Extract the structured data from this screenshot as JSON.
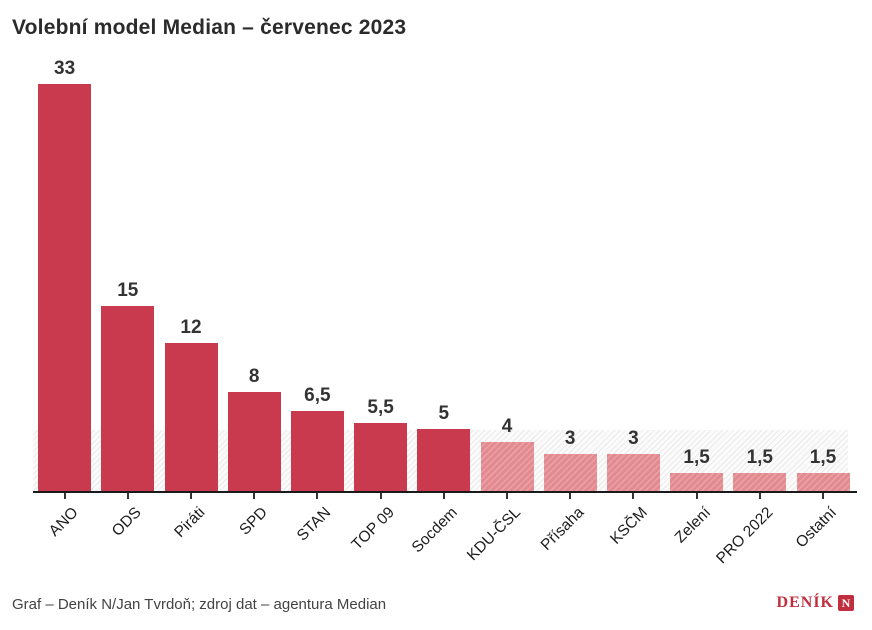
{
  "title": "Volební model Median – červenec 2023",
  "footer": {
    "credit": "Graf – Deník N/Jan Tvrdoň; zdroj dat – agentura Median",
    "logo_text": "DENÍK",
    "logo_n": "N"
  },
  "colors": {
    "bar_solid": "#c93a4f",
    "bar_below_threshold": "#e18b90",
    "threshold_band_stripe": "#eaeaea",
    "axis": "#1a1a1a",
    "value_label": "#333333",
    "logo_red": "#c12f3f"
  },
  "chart_data": {
    "type": "bar",
    "title": "Volební model Median – červenec 2023",
    "xlabel": "",
    "ylabel": "",
    "ylim": [
      0,
      33
    ],
    "grid": false,
    "legend": false,
    "threshold": 5,
    "threshold_note": "bars below 5 rendered light with hatch; 0–5 band hatched",
    "categories": [
      "ANO",
      "ODS",
      "Piráti",
      "SPD",
      "STAN",
      "TOP 09",
      "Socdem",
      "KDU-ČSL",
      "Přísaha",
      "KSČM",
      "Zelení",
      "PRO 2022",
      "Ostatní"
    ],
    "values": [
      33,
      15,
      12,
      8,
      6.5,
      5.5,
      5,
      4,
      3,
      3,
      1.5,
      1.5,
      1.5
    ],
    "value_labels": [
      "33",
      "15",
      "12",
      "8",
      "6,5",
      "5,5",
      "5",
      "4",
      "3",
      "3",
      "1,5",
      "1,5",
      "1,5"
    ]
  }
}
